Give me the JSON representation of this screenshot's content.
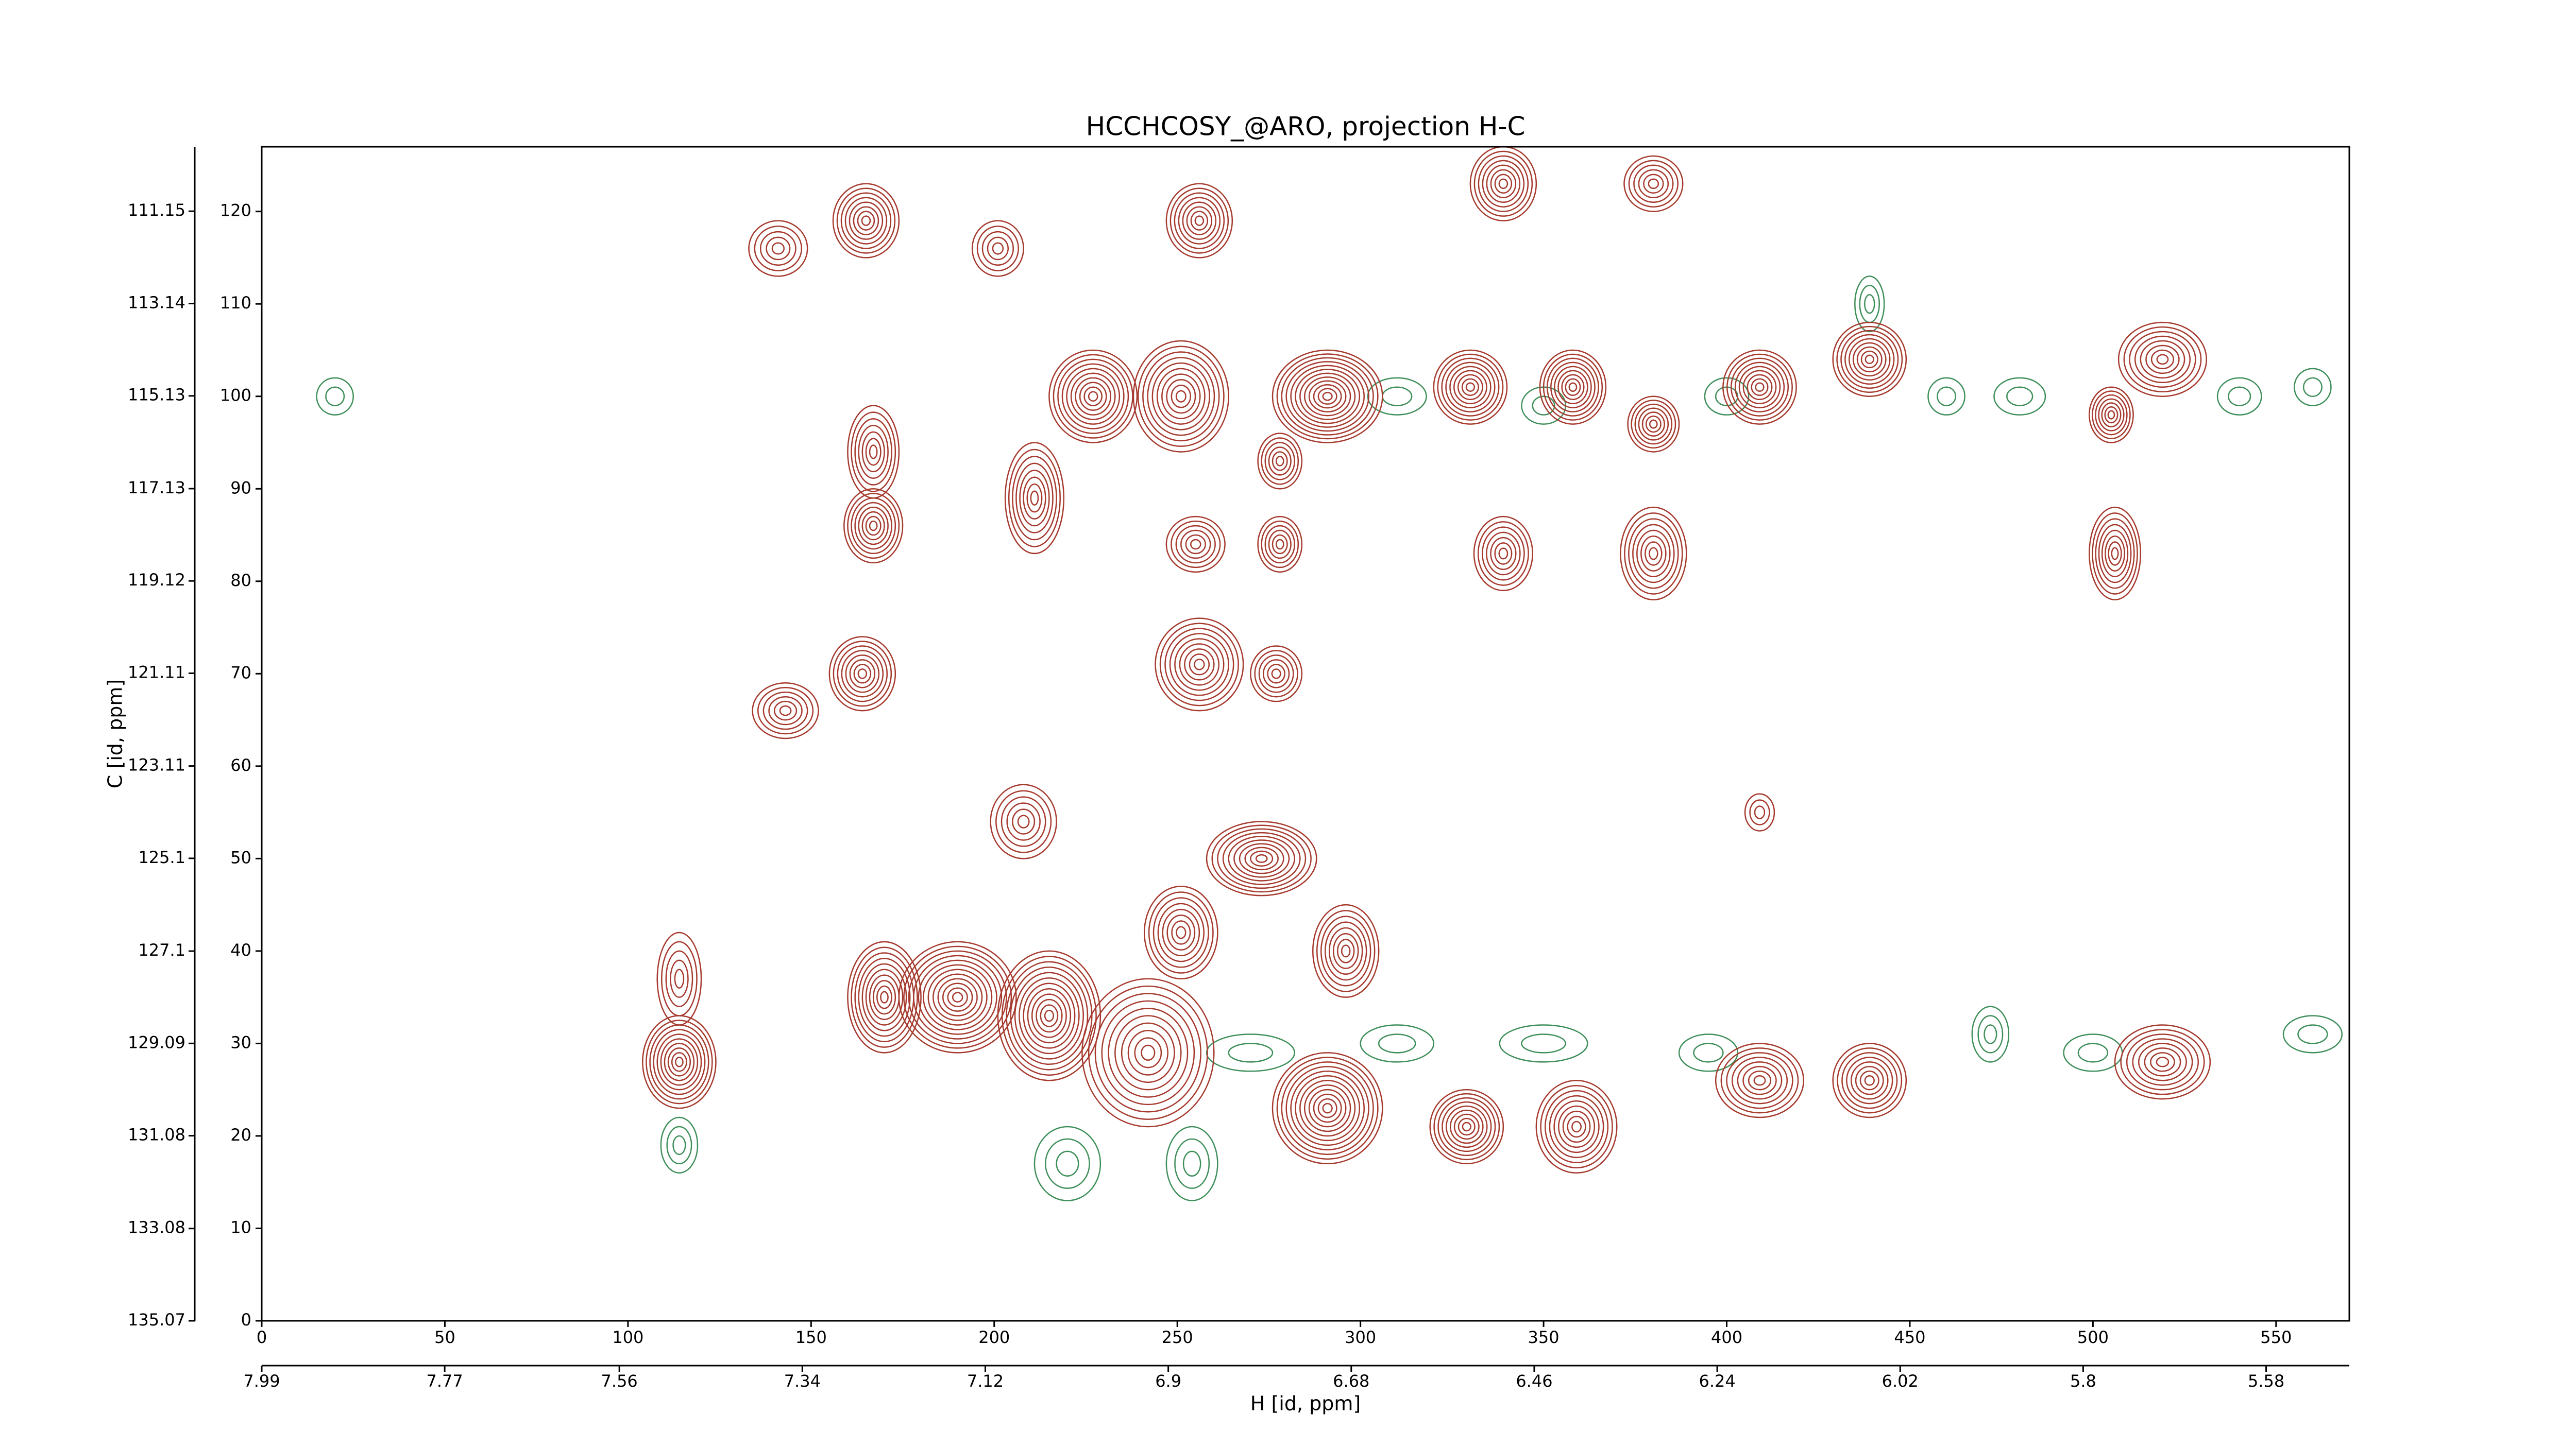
{
  "chart_data": {
    "type": "contour",
    "title": "HCCHCOSY_@ARO, projection H-C",
    "xlabel": "H [id, ppm]",
    "ylabel": "C [id, ppm]",
    "xlim": [
      0,
      570
    ],
    "xticks": [
      0,
      50,
      100,
      150,
      200,
      250,
      300,
      350,
      400,
      450,
      500,
      550
    ],
    "ylim": [
      0,
      127
    ],
    "yticks": [
      0,
      10,
      20,
      30,
      40,
      50,
      60,
      70,
      80,
      90,
      100,
      110,
      120
    ],
    "x2lim": [
      7.99,
      5.48
    ],
    "x2ticks": [
      7.99,
      7.77,
      7.56,
      7.34,
      7.12,
      6.9,
      6.68,
      6.46,
      6.24,
      6.02,
      5.8,
      5.58
    ],
    "y2lim": [
      135.07,
      109.76
    ],
    "y2ticks": [
      135.07,
      133.08,
      131.08,
      129.09,
      127.1,
      125.1,
      123.11,
      121.11,
      119.12,
      117.13,
      115.13,
      113.14,
      111.15
    ],
    "negative_peaks": {
      "color": "#3f8f5a",
      "x": [
        220,
        254,
        114,
        439,
        472,
        310,
        350,
        400,
        460,
        480,
        540,
        560,
        20,
        270,
        310,
        350,
        395,
        560,
        500
      ],
      "y": [
        17,
        17,
        19,
        110,
        31,
        100,
        99,
        100,
        100,
        100,
        100,
        101,
        100,
        29,
        30,
        30,
        29,
        31,
        29
      ],
      "sx": [
        9,
        7,
        5,
        4,
        5,
        8,
        6,
        6,
        5,
        7,
        6,
        5,
        5,
        12,
        10,
        12,
        8,
        8,
        8
      ],
      "sy": [
        4,
        4,
        3,
        3,
        3,
        2,
        2,
        2,
        2,
        2,
        2,
        2,
        2,
        2,
        2,
        2,
        2,
        2,
        2
      ],
      "levels": [
        3,
        3,
        3,
        3,
        3,
        2,
        2,
        2,
        2,
        2,
        2,
        2,
        2,
        2,
        2,
        2,
        2,
        2,
        2
      ]
    },
    "positive_peaks": {
      "color": "#a63a2e",
      "x": [
        165,
        141,
        256,
        339,
        380,
        201,
        227,
        251,
        291,
        278,
        330,
        358,
        380,
        409,
        439,
        519,
        505,
        506,
        167,
        167,
        211,
        255,
        278,
        339,
        380,
        164,
        143,
        256,
        277,
        208,
        273,
        296,
        114,
        114,
        190,
        170,
        215,
        242,
        251,
        291,
        329,
        359,
        409,
        439,
        519,
        409
      ],
      "y": [
        119,
        116,
        119,
        123,
        123,
        116,
        100,
        100,
        100,
        93,
        101,
        101,
        97,
        101,
        104,
        104,
        98,
        83,
        94,
        86,
        89,
        84,
        84,
        83,
        83,
        70,
        66,
        71,
        70,
        54,
        50,
        40,
        28,
        37,
        35,
        35,
        33,
        29,
        42,
        23,
        21,
        21,
        26,
        26,
        28,
        55
      ],
      "sx": [
        9,
        8,
        9,
        9,
        8,
        7,
        12,
        13,
        15,
        6,
        10,
        9,
        7,
        10,
        10,
        12,
        6,
        7,
        7,
        8,
        8,
        8,
        6,
        8,
        9,
        9,
        9,
        12,
        7,
        9,
        15,
        9,
        10,
        6,
        16,
        10,
        14,
        18,
        10,
        15,
        10,
        11,
        12,
        10,
        13,
        4
      ],
      "sy": [
        4,
        3,
        4,
        4,
        3,
        3,
        5,
        6,
        5,
        3,
        4,
        4,
        3,
        4,
        4,
        4,
        3,
        5,
        5,
        4,
        6,
        3,
        3,
        4,
        5,
        4,
        3,
        5,
        3,
        4,
        4,
        5,
        5,
        5,
        6,
        6,
        7,
        8,
        5,
        6,
        4,
        5,
        4,
        4,
        4,
        2
      ],
      "levels": [
        8,
        5,
        8,
        8,
        6,
        5,
        10,
        10,
        12,
        6,
        9,
        9,
        7,
        9,
        9,
        8,
        7,
        8,
        7,
        8,
        8,
        6,
        6,
        7,
        8,
        8,
        6,
        9,
        6,
        6,
        10,
        8,
        10,
        5,
        12,
        10,
        12,
        10,
        8,
        12,
        9,
        9,
        8,
        8,
        8,
        3
      ]
    }
  }
}
